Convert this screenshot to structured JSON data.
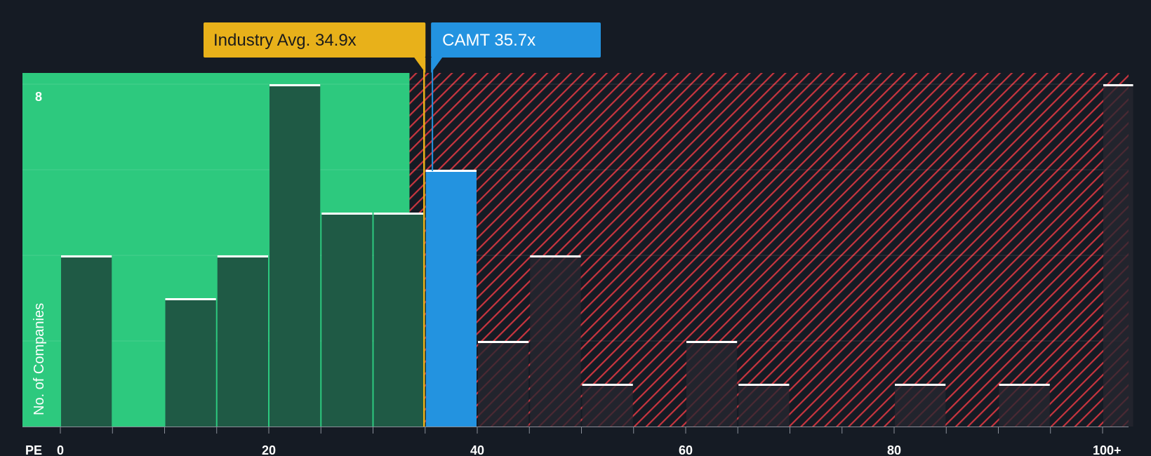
{
  "chart_data": {
    "type": "bar",
    "title": "",
    "xlabel": "PE",
    "ylabel": "No. of Companies",
    "x_range": [
      -6,
      100
    ],
    "ylim": [
      0,
      8
    ],
    "y_ticks": [
      8
    ],
    "x_ticks": [
      {
        "value": 0,
        "label": "0"
      },
      {
        "value": 20,
        "label": "20"
      },
      {
        "value": 40,
        "label": "40"
      },
      {
        "value": 60,
        "label": "60"
      },
      {
        "value": 80,
        "label": "80"
      },
      {
        "value": 100,
        "label": "100+"
      }
    ],
    "minor_tick_step": 5,
    "bins": [
      {
        "start": 0,
        "end": 5,
        "count": 4
      },
      {
        "start": 10,
        "end": 15,
        "count": 3
      },
      {
        "start": 15,
        "end": 20,
        "count": 4
      },
      {
        "start": 20,
        "end": 25,
        "count": 8
      },
      {
        "start": 25,
        "end": 30,
        "count": 5
      },
      {
        "start": 30,
        "end": 35,
        "count": 5
      },
      {
        "start": 35,
        "end": 40,
        "count": 6,
        "highlight": true
      },
      {
        "start": 40,
        "end": 45,
        "count": 2
      },
      {
        "start": 45,
        "end": 50,
        "count": 4
      },
      {
        "start": 50,
        "end": 55,
        "count": 1
      },
      {
        "start": 60,
        "end": 65,
        "count": 2
      },
      {
        "start": 65,
        "end": 70,
        "count": 1
      },
      {
        "start": 80,
        "end": 85,
        "count": 1
      },
      {
        "start": 90,
        "end": 95,
        "count": 1
      },
      {
        "start": 100,
        "end": 103,
        "count": 8
      }
    ],
    "fair_zone_end": 33.5,
    "industry_avg": {
      "value": 34.9,
      "label": "Industry Avg. 34.9x"
    },
    "company": {
      "value": 35.7,
      "label": "CAMT 35.7x"
    }
  },
  "colors": {
    "background": "#151b24",
    "green_zone": "#2dc97e",
    "green_bar": "#1f5a45",
    "red_hatch": "#c8353f",
    "dark_bar": "#262630",
    "highlight_bar": "#2393e0",
    "industry": "#e8b11a",
    "industry_text": "#1b1b1b",
    "company_text": "#ffffff"
  }
}
